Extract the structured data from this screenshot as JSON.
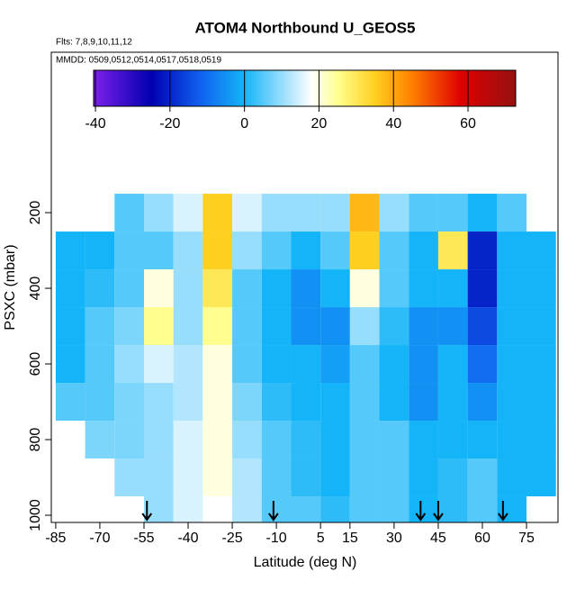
{
  "chart_data": {
    "type": "heatmap",
    "title": "ATOM4 Northbound U_GEOS5",
    "subtitle": "Flts: 7,8,9,10,11,12",
    "note": "MMDD: 0509,0512,0514,0517,0518,0519",
    "x_label": "Latitude (deg N)",
    "y_label": "PSXC (mbar)",
    "x": [
      -80,
      -70,
      -60,
      -50,
      -40,
      -30,
      -20,
      -10,
      0,
      10,
      20,
      30,
      40,
      50,
      60,
      70,
      80
    ],
    "y": [
      200,
      300,
      400,
      500,
      600,
      700,
      800,
      900,
      1000
    ],
    "values": [
      [
        null,
        0,
        0,
        0,
        0,
        5,
        null,
        null,
        null
      ],
      [
        null,
        0,
        2,
        5,
        5,
        5,
        8,
        null,
        null
      ],
      [
        5,
        5,
        5,
        8,
        10,
        8,
        8,
        10,
        null
      ],
      [
        10,
        5,
        20,
        25,
        15,
        10,
        10,
        10,
        10
      ],
      [
        15,
        10,
        10,
        10,
        12,
        12,
        15,
        15,
        15
      ],
      [
        35,
        35,
        30,
        25,
        20,
        20,
        20,
        20,
        18
      ],
      [
        15,
        10,
        5,
        5,
        5,
        8,
        10,
        12,
        12
      ],
      [
        10,
        5,
        0,
        0,
        0,
        2,
        5,
        5,
        5
      ],
      [
        10,
        0,
        -5,
        -5,
        0,
        0,
        2,
        2,
        5
      ],
      [
        10,
        5,
        0,
        -5,
        -3,
        0,
        0,
        0,
        2
      ],
      [
        38,
        35,
        20,
        10,
        5,
        5,
        5,
        5,
        5
      ],
      [
        10,
        5,
        5,
        2,
        0,
        0,
        5,
        5,
        5
      ],
      [
        5,
        0,
        0,
        -5,
        -5,
        -5,
        0,
        0,
        0
      ],
      [
        5,
        30,
        0,
        -5,
        0,
        0,
        0,
        2,
        2
      ],
      [
        0,
        -20,
        -20,
        -15,
        -10,
        -5,
        0,
        5,
        5
      ],
      [
        5,
        0,
        0,
        0,
        0,
        0,
        0,
        0,
        0
      ],
      [
        null,
        0,
        0,
        0,
        0,
        0,
        0,
        0,
        null
      ]
    ],
    "arrows": [
      -54,
      -11,
      39,
      45,
      67
    ],
    "xlim": [
      -86.5,
      85.7
    ],
    "xticks": [
      -85,
      -70,
      -55,
      -40,
      -25,
      -10,
      5,
      15,
      30,
      45,
      60,
      75
    ],
    "ylim": [
      1019,
      -224
    ],
    "yticks": [
      200,
      400,
      600,
      800,
      1000
    ],
    "colorbar": {
      "lim": [
        -40.5,
        72.8
      ],
      "ticks": [
        -40,
        -20,
        0,
        20,
        40,
        60
      ],
      "stops": [
        [
          -40,
          "#7a1fe8"
        ],
        [
          -25,
          "#0000b0"
        ],
        [
          -12,
          "#1060f0"
        ],
        [
          0,
          "#14b4f8"
        ],
        [
          18,
          "#ffffff"
        ],
        [
          25,
          "#ffff90"
        ],
        [
          35,
          "#ffd020"
        ],
        [
          45,
          "#ff8000"
        ],
        [
          58,
          "#e00000"
        ],
        [
          72,
          "#9a1010"
        ]
      ]
    }
  }
}
